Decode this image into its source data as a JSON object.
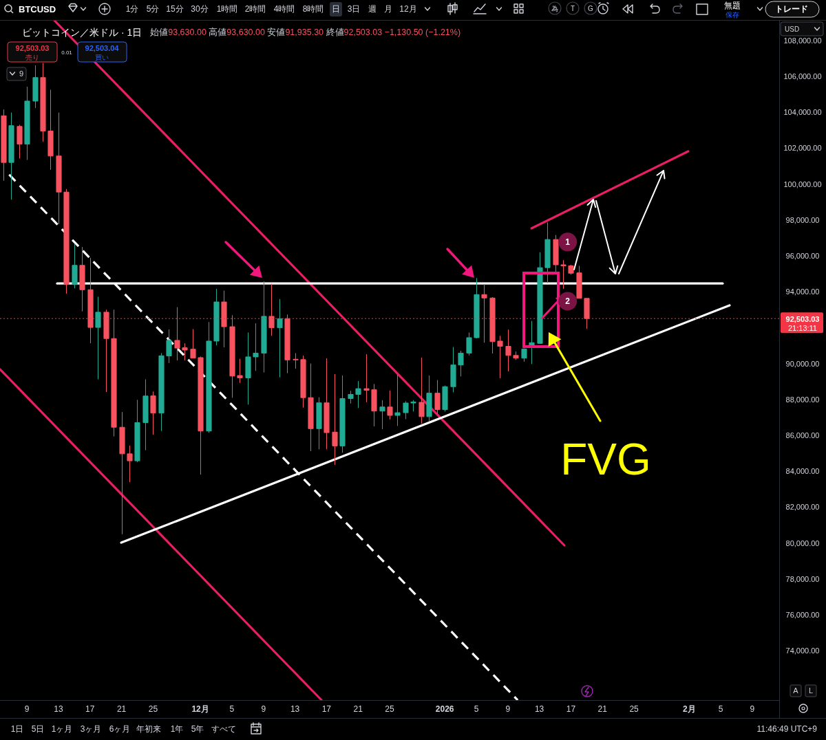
{
  "chart_data": {
    "type": "candlestick",
    "title": "ビットコイン／米ドル · 1日",
    "subtitle": "始値93,630.00 高値93,630.00 安値91,935.30 終値92,503.03 −1,130.50 (−1.21%)",
    "x": [
      "2025-11-06",
      "2025-11-07",
      "2025-11-08",
      "2025-11-09",
      "2025-11-10",
      "2025-11-11",
      "2025-11-12",
      "2025-11-13",
      "2025-11-14",
      "2025-11-15",
      "2025-11-16",
      "2025-11-17",
      "2025-11-18",
      "2025-11-19",
      "2025-11-20",
      "2025-11-21",
      "2025-11-22",
      "2025-11-23",
      "2025-11-24",
      "2025-11-25",
      "2025-11-26",
      "2025-11-27",
      "2025-11-28",
      "2025-11-29",
      "2025-11-30",
      "2025-12-01",
      "2025-12-02",
      "2025-12-03",
      "2025-12-04",
      "2025-12-05",
      "2025-12-06",
      "2025-12-07",
      "2025-12-08",
      "2025-12-09",
      "2025-12-10",
      "2025-12-11",
      "2025-12-12",
      "2025-12-13",
      "2025-12-14",
      "2025-12-15",
      "2025-12-16",
      "2025-12-17",
      "2025-12-18",
      "2025-12-19",
      "2025-12-20",
      "2025-12-21",
      "2025-12-22",
      "2025-12-23",
      "2025-12-24",
      "2025-12-25",
      "2025-12-26",
      "2025-12-27",
      "2025-12-28",
      "2025-12-29",
      "2025-12-30",
      "2025-12-31",
      "2026-01-01",
      "2026-01-02",
      "2026-01-03",
      "2026-01-04",
      "2026-01-05",
      "2026-01-06",
      "2026-01-07",
      "2026-01-08",
      "2026-01-09",
      "2026-01-10",
      "2026-01-11",
      "2026-01-12",
      "2026-01-13",
      "2026-01-14",
      "2026-01-15",
      "2026-01-16",
      "2026-01-17",
      "2026-01-18",
      "2026-01-19"
    ],
    "ohlc": [
      [
        103800,
        104150,
        100180,
        101200
      ],
      [
        101200,
        103980,
        99130,
        103250
      ],
      [
        103210,
        103300,
        101420,
        102220
      ],
      [
        102220,
        105420,
        101340,
        104620
      ],
      [
        104620,
        106610,
        104230,
        105930
      ],
      [
        105930,
        106740,
        102360,
        102950
      ],
      [
        102950,
        105250,
        100790,
        101560
      ],
      [
        101560,
        103980,
        97770,
        99550
      ],
      [
        99550,
        99720,
        93890,
        94400
      ],
      [
        94400,
        96660,
        94190,
        95470
      ],
      [
        95470,
        96490,
        92910,
        94110
      ],
      [
        94110,
        95890,
        91130,
        92010
      ],
      [
        92010,
        93720,
        89120,
        92860
      ],
      [
        92860,
        93000,
        88410,
        91390
      ],
      [
        91390,
        93000,
        85940,
        86450
      ],
      [
        86450,
        87300,
        80490,
        84970
      ],
      [
        84970,
        85430,
        83390,
        84580
      ],
      [
        84580,
        87980,
        84500,
        86710
      ],
      [
        86710,
        89120,
        85170,
        88190
      ],
      [
        88200,
        88440,
        86030,
        87240
      ],
      [
        87240,
        90580,
        86240,
        90430
      ],
      [
        90420,
        91900,
        90030,
        91290
      ],
      [
        91290,
        93140,
        90170,
        90860
      ],
      [
        90880,
        91130,
        90170,
        90750
      ],
      [
        90800,
        91920,
        90300,
        90300
      ],
      [
        90330,
        90390,
        83810,
        86240
      ],
      [
        86240,
        92310,
        86140,
        91250
      ],
      [
        91250,
        94160,
        91010,
        93430
      ],
      [
        93430,
        94060,
        90900,
        92050
      ],
      [
        92050,
        92690,
        88090,
        89300
      ],
      [
        89330,
        90260,
        88920,
        89200
      ],
      [
        89200,
        91730,
        87710,
        90370
      ],
      [
        90370,
        92240,
        89590,
        90580
      ],
      [
        90580,
        94570,
        89500,
        92630
      ],
      [
        92630,
        94440,
        91540,
        91990
      ],
      [
        91990,
        93590,
        89230,
        92500
      ],
      [
        92500,
        92730,
        89460,
        90200
      ],
      [
        90240,
        90580,
        89710,
        90200
      ],
      [
        90220,
        90450,
        87540,
        88100
      ],
      [
        88100,
        90000,
        85120,
        86370
      ],
      [
        86370,
        88120,
        85220,
        87810
      ],
      [
        87810,
        90290,
        85220,
        86150
      ],
      [
        86180,
        89410,
        84350,
        85410
      ],
      [
        85410,
        89330,
        85030,
        88050
      ],
      [
        88050,
        88480,
        87770,
        88280
      ],
      [
        88280,
        89020,
        87520,
        88600
      ],
      [
        88600,
        90520,
        87840,
        88510
      ],
      [
        88540,
        88860,
        86500,
        87350
      ],
      [
        87350,
        87960,
        86340,
        87580
      ],
      [
        87580,
        88500,
        86880,
        87110
      ],
      [
        87110,
        89370,
        86520,
        87260
      ],
      [
        87260,
        87900,
        86900,
        87800
      ],
      [
        87800,
        87960,
        87330,
        87860
      ],
      [
        87840,
        90330,
        86650,
        87040
      ],
      [
        87040,
        89330,
        86750,
        88350
      ],
      [
        88350,
        89080,
        87200,
        87430
      ],
      [
        87430,
        88770,
        87330,
        88710
      ],
      [
        88710,
        90920,
        88400,
        89920
      ],
      [
        89920,
        90710,
        89280,
        90580
      ],
      [
        90580,
        91730,
        90450,
        91440
      ],
      [
        91440,
        94760,
        91400,
        93840
      ],
      [
        93840,
        94420,
        91160,
        93650
      ],
      [
        93650,
        93700,
        90560,
        91220
      ],
      [
        91250,
        91540,
        89180,
        90960
      ],
      [
        90960,
        91890,
        89560,
        90450
      ],
      [
        90450,
        90670,
        90200,
        90300
      ],
      [
        90300,
        90840,
        90100,
        90810
      ],
      [
        91000,
        92370,
        89970,
        91160
      ],
      [
        91120,
        96200,
        91090,
        95340
      ],
      [
        95340,
        97860,
        94480,
        96910
      ],
      [
        96910,
        97160,
        95080,
        95500
      ],
      [
        95500,
        95760,
        94160,
        95440
      ],
      [
        95440,
        95500,
        94950,
        95030
      ],
      [
        95050,
        95440,
        93630,
        93630
      ],
      [
        93630,
        93630,
        91935.3,
        92503.03
      ]
    ],
    "colors": [
      "#f7525f",
      "#22ab94",
      "#f7525f",
      "#22ab94",
      "#22ab94",
      "#f7525f",
      "#f7525f",
      "#f7525f",
      "#f7525f",
      "#22ab94",
      "#f7525f",
      "#f7525f",
      "#22ab94",
      "#f7525f",
      "#f7525f",
      "#f7525f",
      "#f7525f",
      "#22ab94",
      "#22ab94",
      "#f7525f",
      "#22ab94",
      "#22ab94",
      "#f7525f",
      "#f7525f",
      "#f7525f",
      "#f7525f",
      "#22ab94",
      "#22ab94",
      "#f7525f",
      "#f7525f",
      "#f7525f",
      "#22ab94",
      "#22ab94",
      "#22ab94",
      "#f7525f",
      "#22ab94",
      "#f7525f",
      "#f7525f",
      "#f7525f",
      "#f7525f",
      "#22ab94",
      "#f7525f",
      "#f7525f",
      "#22ab94",
      "#22ab94",
      "#22ab94",
      "#f7525f",
      "#f7525f",
      "#22ab94",
      "#f7525f",
      "#22ab94",
      "#22ab94",
      "#22ab94",
      "#f7525f",
      "#22ab94",
      "#f7525f",
      "#22ab94",
      "#22ab94",
      "#22ab94",
      "#22ab94",
      "#22ab94",
      "#f7525f",
      "#f7525f",
      "#f7525f",
      "#f7525f",
      "#f7525f",
      "#22ab94",
      "#22ab94",
      "#22ab94",
      "#22ab94",
      "#f7525f",
      "#f7525f",
      "#f7525f",
      "#f7525f",
      "#f7525f"
    ],
    "series": [
      {
        "type": "line",
        "x": [
          "2025-11-12T12:00",
          "2026-01-16T04:00"
        ],
        "values": [
          109100,
          79870
        ],
        "color": "#e91e63",
        "line_style": "solid"
      },
      {
        "type": "line",
        "x": [
          "2025-11-05T14:00",
          "2025-12-16T09:00"
        ],
        "values": [
          89680,
          71250
        ],
        "color": "#e91e63",
        "line_style": "solid"
      },
      {
        "type": "line",
        "x": [
          "2025-11-06T18:00",
          "2026-01-10T06:00"
        ],
        "values": [
          100520,
          71250
        ],
        "color": "#ffffff",
        "line_style": "dashed"
      },
      {
        "type": "line",
        "x": [
          "2025-11-12T20:00",
          "2026-02-05T06:00"
        ],
        "values": [
          94460,
          94460
        ],
        "color": "#ffffff",
        "line_style": "solid"
      },
      {
        "type": "line",
        "x": [
          "2025-11-20T23:00",
          "2026-02-06T03:00"
        ],
        "values": [
          80020,
          93240
        ],
        "color": "#ffffff",
        "line_style": "solid"
      },
      {
        "type": "line",
        "x": [
          "2026-01-12",
          "2026-01-31T21:00"
        ],
        "values": [
          97530,
          101820
        ],
        "color": "#e91e63",
        "line_style": "solid"
      }
    ],
    "xlim": [
      "2025-11-05T14:00",
      "2026-02-12T10:00"
    ],
    "xticks": [
      {
        "value": "2025-11-09",
        "label": "9"
      },
      {
        "value": "2025-11-13",
        "label": "13"
      },
      {
        "value": "2025-11-17",
        "label": "17"
      },
      {
        "value": "2025-11-21",
        "label": "21"
      },
      {
        "value": "2025-11-25",
        "label": "25"
      },
      {
        "value": "2025-12-01",
        "label": "12月"
      },
      {
        "value": "2025-12-05",
        "label": "5"
      },
      {
        "value": "2025-12-09",
        "label": "9"
      },
      {
        "value": "2025-12-13",
        "label": "13"
      },
      {
        "value": "2025-12-17",
        "label": "17"
      },
      {
        "value": "2025-12-21",
        "label": "21"
      },
      {
        "value": "2025-12-25",
        "label": "25"
      },
      {
        "value": "2026-01-01",
        "label": "2026"
      },
      {
        "value": "2026-01-05",
        "label": "5"
      },
      {
        "value": "2026-01-09",
        "label": "9"
      },
      {
        "value": "2026-01-13",
        "label": "13"
      },
      {
        "value": "2026-01-17",
        "label": "17"
      },
      {
        "value": "2026-01-21",
        "label": "21"
      },
      {
        "value": "2026-01-25",
        "label": "25"
      },
      {
        "value": "2026-02-01",
        "label": "2月"
      },
      {
        "value": "2026-02-05",
        "label": "5"
      },
      {
        "value": "2026-02-09",
        "label": "9"
      }
    ],
    "ylim": [
      71250,
      109100
    ],
    "yticks": [
      {
        "value": 74000,
        "label": "74,000.00"
      },
      {
        "value": 76000,
        "label": "76,000.00"
      },
      {
        "value": 78000,
        "label": "78,000.00"
      },
      {
        "value": 80000,
        "label": "80,000.00"
      },
      {
        "value": 82000,
        "label": "82,000.00"
      },
      {
        "value": 84000,
        "label": "84,000.00"
      },
      {
        "value": 86000,
        "label": "86,000.00"
      },
      {
        "value": 88000,
        "label": "88,000.00"
      },
      {
        "value": 90000,
        "label": "90,000.00"
      },
      {
        "value": 94000,
        "label": "94,000.00"
      },
      {
        "value": 96000,
        "label": "96,000.00"
      },
      {
        "value": 98000,
        "label": "98,000.00"
      },
      {
        "value": 100000,
        "label": "100,000.00"
      },
      {
        "value": 102000,
        "label": "102,000.00"
      },
      {
        "value": 104000,
        "label": "104,000.00"
      },
      {
        "value": 106000,
        "label": "106,000.00"
      },
      {
        "value": 108000,
        "label": "108,000.00"
      }
    ],
    "ref_lines": [
      {
        "axis": "y",
        "value": 92503.03,
        "label": "92,503.03",
        "color": "#f23645",
        "line_style": "dotted"
      }
    ],
    "annotations": [
      "BTCUSD",
      "1分",
      "5分",
      "15分",
      "30分",
      "1時間",
      "2時間",
      "4時間",
      "8時間",
      "日",
      "3日",
      "週",
      "月",
      "12月",
      "為",
      "T",
      "G",
      "無題",
      "保存",
      "トレード",
      "92,503.03",
      "売り",
      "0.01",
      "92,503.04",
      "買い",
      "9",
      "USD",
      "21:13:11",
      "A",
      "L",
      "1日",
      "5日",
      "1ヶ月",
      "3ヶ月",
      "6ヶ月",
      "年初来",
      "1年",
      "5年",
      "すべて",
      "11:46:49 UTC+9",
      "FVG",
      {
        "text": "1",
        "x": "2026-01-16T14:00",
        "y": 96770
      },
      {
        "text": "2",
        "x": "2026-01-16T14:00",
        "y": 93470
      }
    ]
  }
}
